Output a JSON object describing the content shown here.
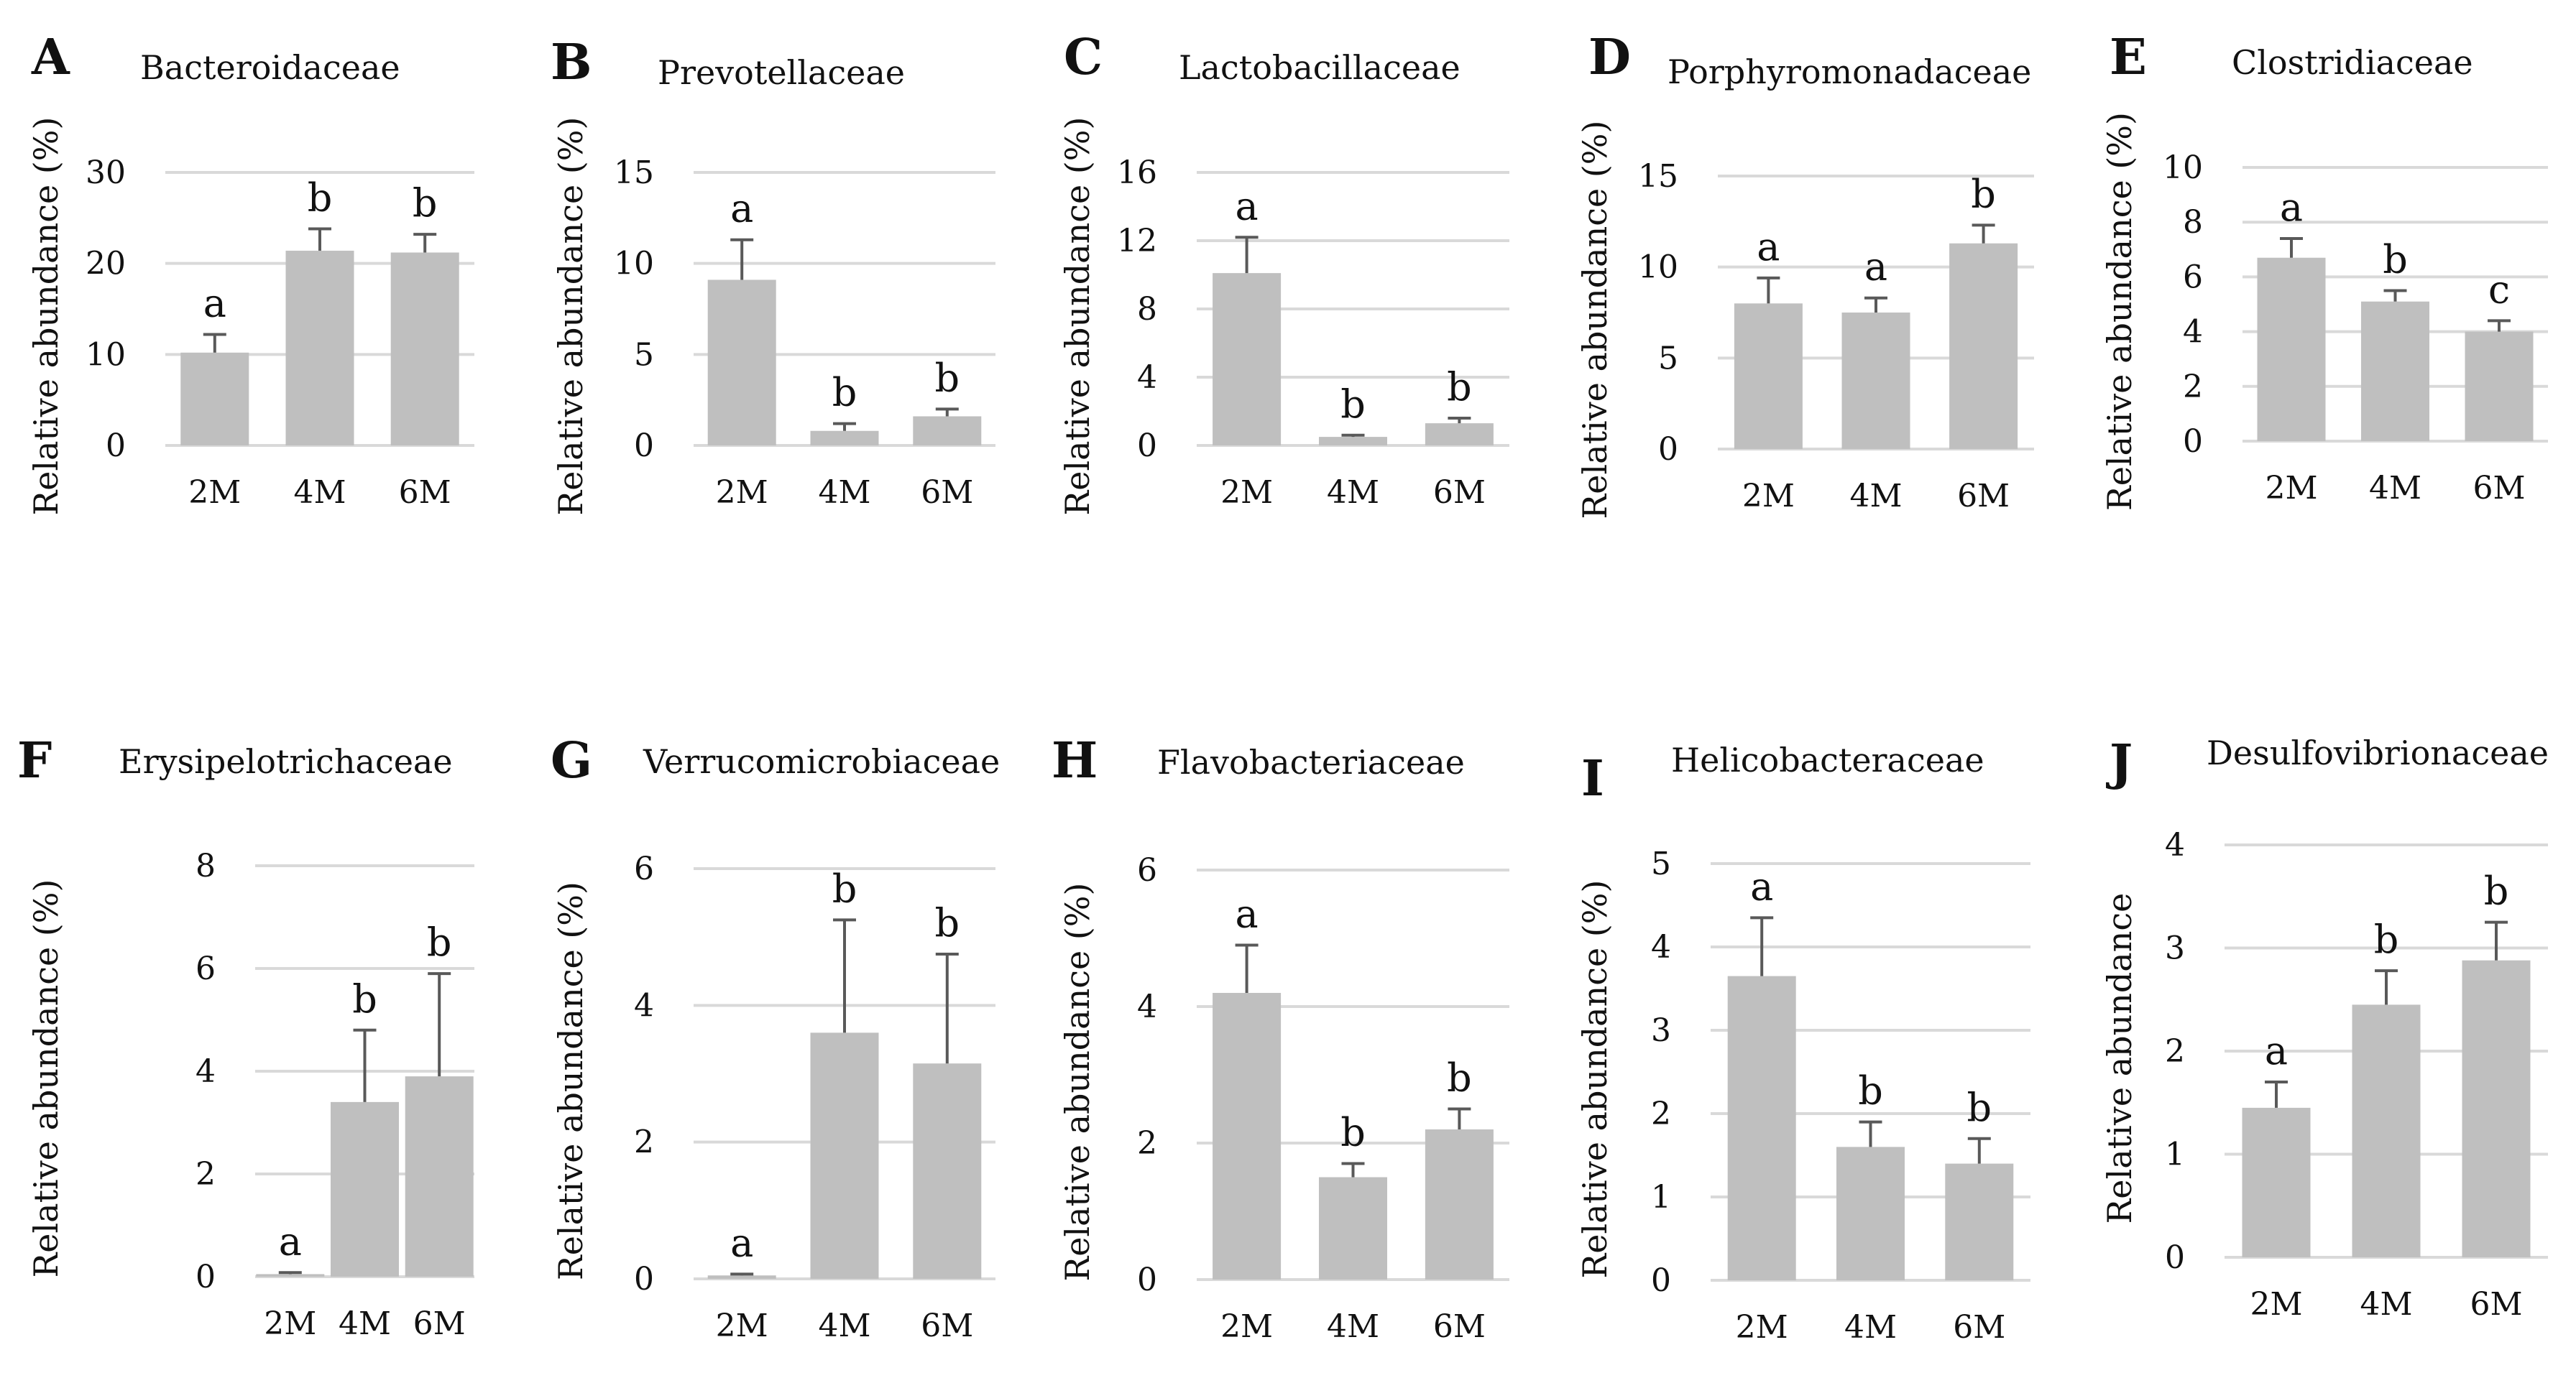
{
  "figure": {
    "bar_color": "#bfbfbf",
    "grid_color": "#d9d9d9",
    "text_color": "#111111",
    "error_bar_color": "#595959"
  },
  "chart_data": [
    {
      "letter": "A",
      "title": "Bacteroidaceae",
      "type": "bar",
      "ylabel": "Relative abundance (%)",
      "categories": [
        "2M",
        "4M",
        "6M"
      ],
      "values": [
        10.2,
        21.4,
        21.2
      ],
      "errors": [
        2.0,
        2.4,
        2.0
      ],
      "significance": [
        "a",
        "b",
        "b"
      ],
      "ylim": [
        0,
        30
      ],
      "yticks": [
        0,
        10,
        20,
        30
      ]
    },
    {
      "letter": "B",
      "title": "Prevotellaceae",
      "type": "bar",
      "ylabel": "Relative abundance (%)",
      "categories": [
        "2M",
        "4M",
        "6M"
      ],
      "values": [
        9.1,
        0.8,
        1.6
      ],
      "errors": [
        2.2,
        0.4,
        0.4
      ],
      "significance": [
        "a",
        "b",
        "b"
      ],
      "ylim": [
        0,
        15
      ],
      "yticks": [
        0,
        5,
        10,
        15
      ]
    },
    {
      "letter": "C",
      "title": "Lactobacillaceae",
      "type": "bar",
      "ylabel": "Relative abundance (%)",
      "categories": [
        "2M",
        "4M",
        "6M"
      ],
      "values": [
        10.1,
        0.5,
        1.3
      ],
      "errors": [
        2.1,
        0.1,
        0.3
      ],
      "significance": [
        "a",
        "b",
        "b"
      ],
      "ylim": [
        0,
        16
      ],
      "yticks": [
        0,
        4,
        8,
        12,
        16
      ]
    },
    {
      "letter": "D",
      "title": "Porphyromonadaceae",
      "type": "bar",
      "ylabel": "Relative abundance (%)",
      "categories": [
        "2M",
        "4M",
        "6M"
      ],
      "values": [
        8.0,
        7.5,
        11.3
      ],
      "errors": [
        1.4,
        0.8,
        1.0
      ],
      "significance": [
        "a",
        "a",
        "b"
      ],
      "ylim": [
        0,
        15
      ],
      "yticks": [
        0,
        5,
        10,
        15
      ]
    },
    {
      "letter": "E",
      "title": "Clostridiaceae",
      "type": "bar",
      "ylabel": "Relative abundance (%)",
      "categories": [
        "2M",
        "4M",
        "6M"
      ],
      "values": [
        6.7,
        5.1,
        4.0
      ],
      "errors": [
        0.7,
        0.4,
        0.4
      ],
      "significance": [
        "a",
        "b",
        "c"
      ],
      "ylim": [
        0,
        10
      ],
      "yticks": [
        0,
        2,
        4,
        6,
        8,
        10
      ]
    },
    {
      "letter": "F",
      "title": "Erysipelotrichaceae",
      "type": "bar",
      "ylabel": "Relative abundance (%)",
      "categories": [
        "2M",
        "4M",
        "6M"
      ],
      "values": [
        0.05,
        3.4,
        3.9
      ],
      "errors": [
        0.03,
        1.4,
        2.0
      ],
      "significance": [
        "a",
        "b",
        "b"
      ],
      "ylim": [
        0,
        8
      ],
      "yticks": [
        0,
        2,
        4,
        6,
        8
      ]
    },
    {
      "letter": "G",
      "title": "Verrucomicrobiaceae",
      "type": "bar",
      "ylabel": "Relative abundance (%)",
      "categories": [
        "2M",
        "4M",
        "6M"
      ],
      "values": [
        0.05,
        3.6,
        3.15
      ],
      "errors": [
        0.02,
        1.65,
        1.6
      ],
      "significance": [
        "a",
        "b",
        "b"
      ],
      "ylim": [
        0,
        6
      ],
      "yticks": [
        0,
        2,
        4,
        6
      ]
    },
    {
      "letter": "H",
      "title": "Flavobacteriaceae",
      "type": "bar",
      "ylabel": "Relative abundance (%)",
      "categories": [
        "2M",
        "4M",
        "6M"
      ],
      "values": [
        4.2,
        1.5,
        2.2
      ],
      "errors": [
        0.7,
        0.2,
        0.3
      ],
      "significance": [
        "a",
        "b",
        "b"
      ],
      "ylim": [
        0,
        6
      ],
      "yticks": [
        0,
        2,
        4,
        6
      ]
    },
    {
      "letter": "I",
      "title": "Helicobacteraceae",
      "type": "bar",
      "ylabel": "Relative abundance (%)",
      "categories": [
        "2M",
        "4M",
        "6M"
      ],
      "values": [
        3.65,
        1.6,
        1.4
      ],
      "errors": [
        0.7,
        0.3,
        0.3
      ],
      "significance": [
        "a",
        "b",
        "b"
      ],
      "ylim": [
        0,
        5
      ],
      "yticks": [
        0,
        1,
        2,
        3,
        4,
        5
      ]
    },
    {
      "letter": "J",
      "title": "Desulfovibrionaceae",
      "type": "bar",
      "ylabel": "Relative abundance",
      "categories": [
        "2M",
        "4M",
        "6M"
      ],
      "values": [
        1.45,
        2.45,
        2.88
      ],
      "errors": [
        0.25,
        0.33,
        0.37
      ],
      "significance": [
        "a",
        "b",
        "b"
      ],
      "ylim": [
        0,
        4
      ],
      "yticks": [
        0,
        1,
        2,
        3,
        4
      ]
    }
  ]
}
